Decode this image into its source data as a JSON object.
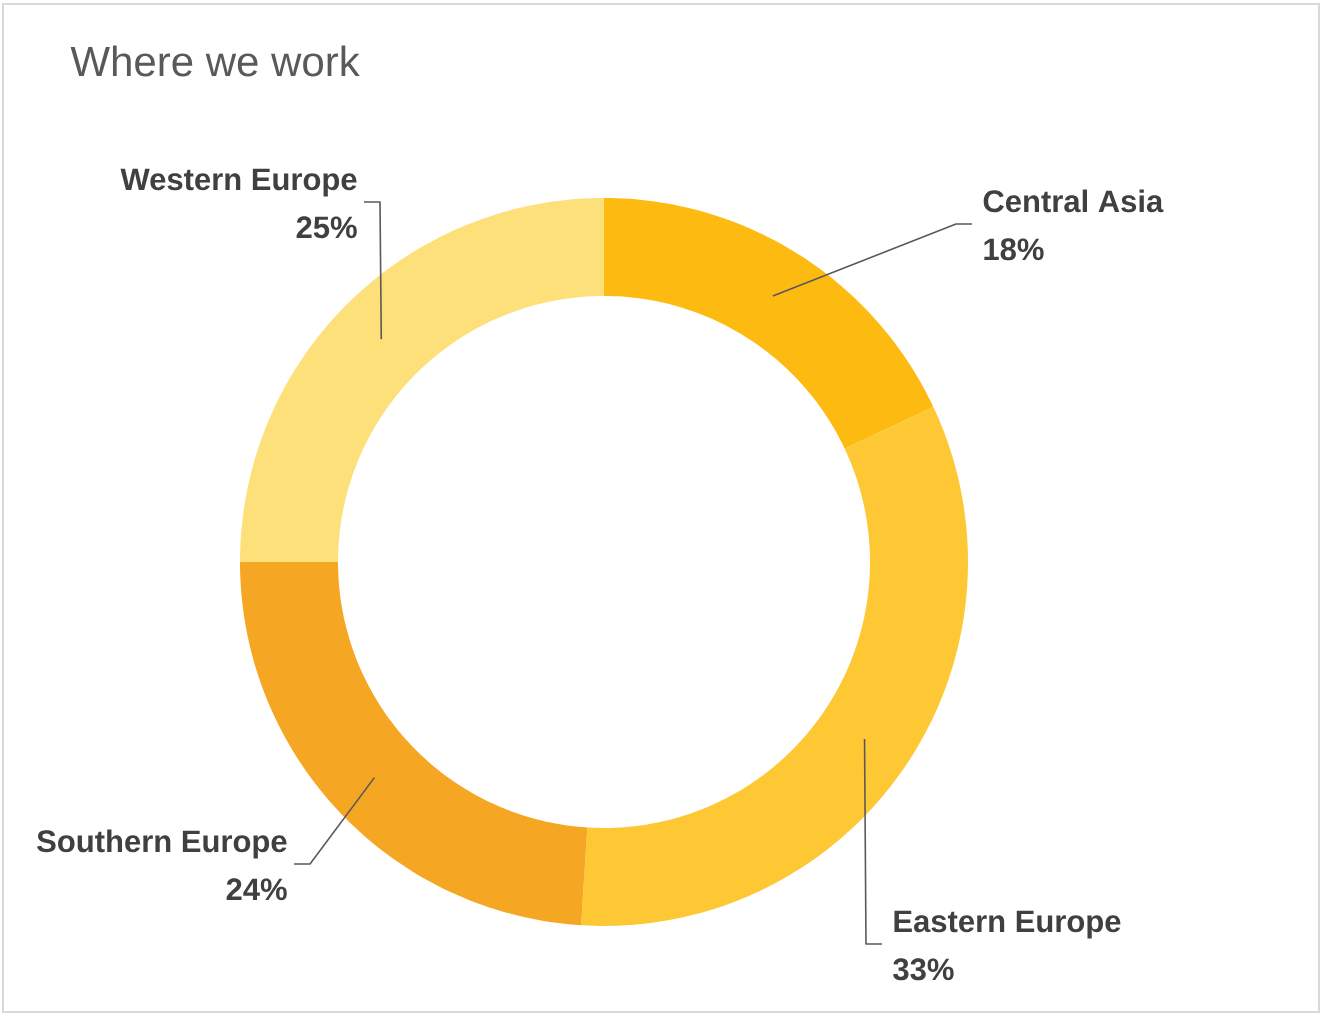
{
  "chart_data": {
    "type": "donut",
    "title": "Where we work",
    "categories": [
      "Central Asia",
      "Eastern Europe",
      "Southern Europe",
      "Western Europe"
    ],
    "values": [
      18,
      33,
      24,
      25
    ],
    "colors": [
      "#fdbb11",
      "#fec734",
      "#f5a623",
      "#fde07a"
    ],
    "value_labels": [
      "18%",
      "33%",
      "24%",
      "25%"
    ]
  }
}
